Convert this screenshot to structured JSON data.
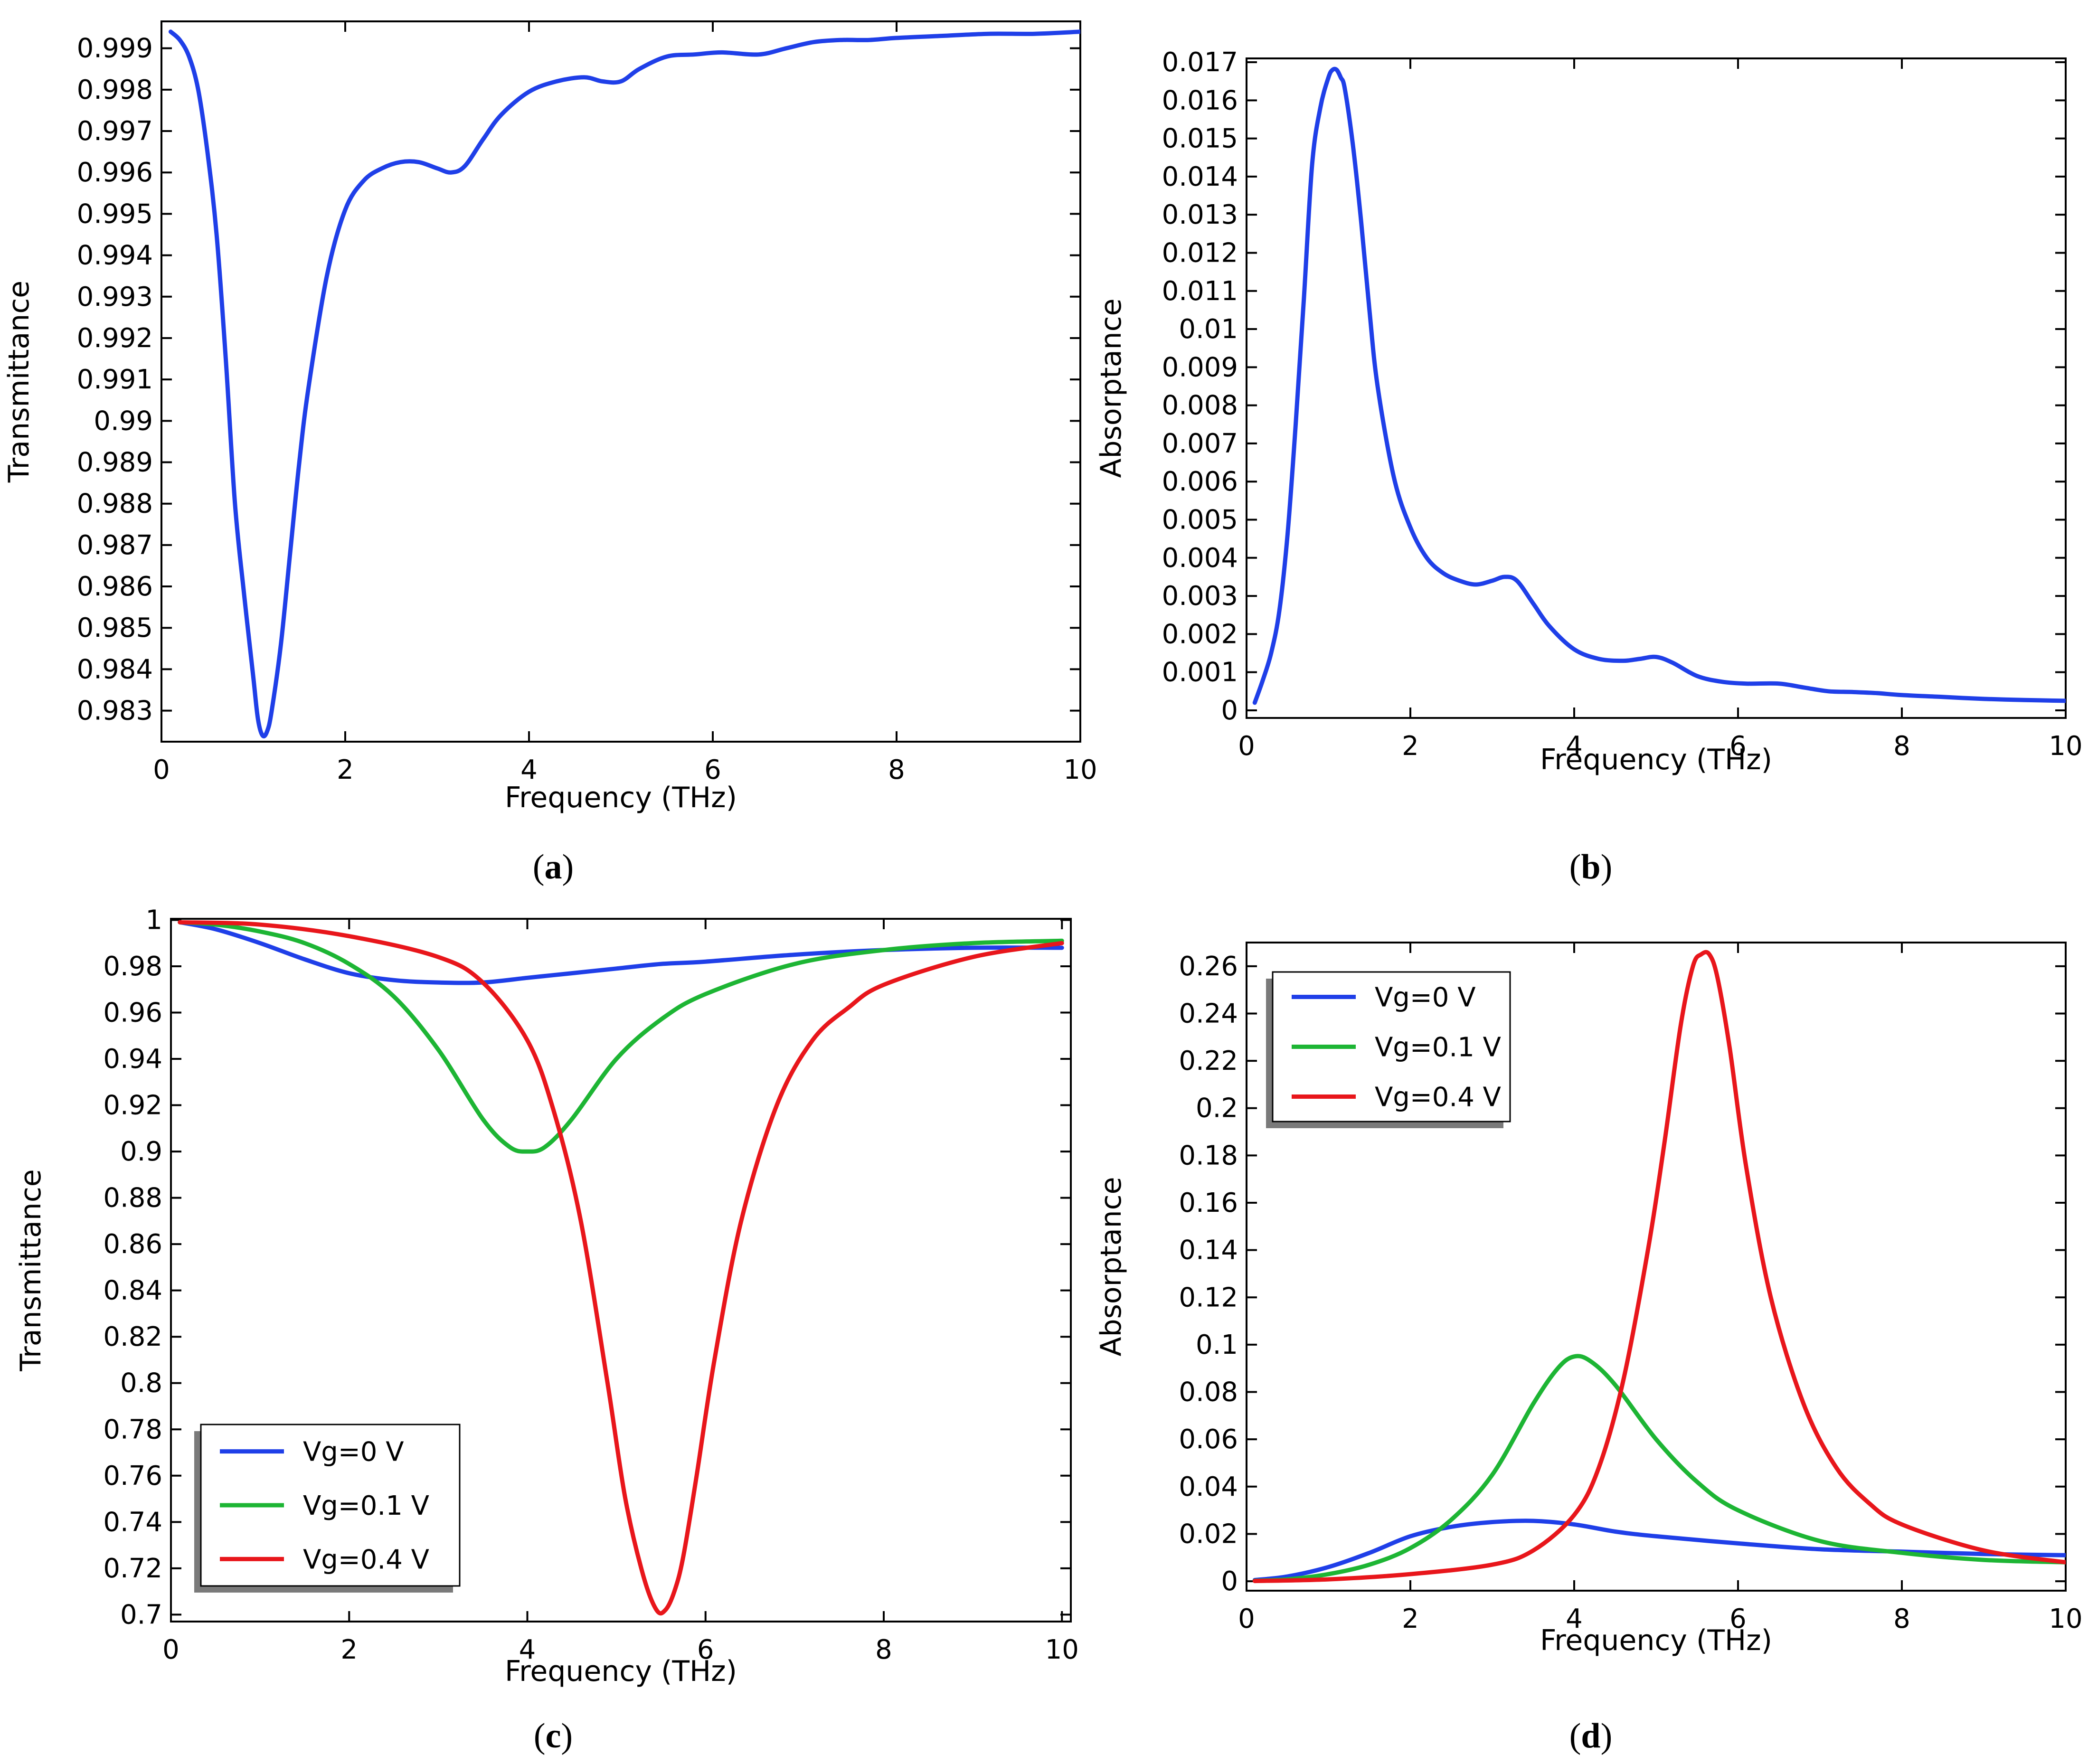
{
  "panel_labels": [
    "a",
    "b",
    "c",
    "d"
  ],
  "colors": {
    "blue": "#1f3fe8",
    "green": "#1db534",
    "red": "#e8161b",
    "axis": "#000000"
  },
  "chart_data": [
    {
      "id": "a",
      "type": "line",
      "xlabel": "Frequency (THz)",
      "ylabel": "Transmittance",
      "xlim": [
        0,
        10
      ],
      "ylim": [
        0.98225,
        0.99965
      ],
      "xticks": [
        0,
        2,
        4,
        6,
        8,
        10
      ],
      "xtick_labels": [
        "0",
        "2",
        "4",
        "6",
        "8",
        "10"
      ],
      "yticks": [
        0.983,
        0.984,
        0.985,
        0.986,
        0.987,
        0.988,
        0.989,
        0.99,
        0.991,
        0.992,
        0.993,
        0.994,
        0.995,
        0.996,
        0.997,
        0.998,
        0.999
      ],
      "ytick_labels": [
        "0.983",
        "0.984",
        "0.985",
        "0.986",
        "0.987",
        "0.988",
        "0.989",
        "0.99",
        "0.991",
        "0.992",
        "0.993",
        "0.994",
        "0.995",
        "0.996",
        "0.997",
        "0.998",
        "0.999"
      ],
      "series": [
        {
          "name": "Transmittance",
          "color": "blue",
          "x": [
            0.1,
            0.2,
            0.3,
            0.4,
            0.5,
            0.6,
            0.7,
            0.8,
            0.9,
            1.0,
            1.05,
            1.1,
            1.15,
            1.2,
            1.3,
            1.4,
            1.5,
            1.6,
            1.8,
            2.0,
            2.2,
            2.4,
            2.6,
            2.8,
            3.0,
            3.15,
            3.3,
            3.5,
            3.7,
            4.0,
            4.3,
            4.6,
            4.8,
            5.0,
            5.2,
            5.5,
            5.8,
            6.1,
            6.5,
            6.8,
            7.1,
            7.4,
            7.7,
            8.0,
            8.5,
            9.0,
            9.5,
            10.0
          ],
          "y": [
            0.9994,
            0.9992,
            0.9988,
            0.998,
            0.9965,
            0.9945,
            0.9915,
            0.988,
            0.9858,
            0.9838,
            0.9828,
            0.9824,
            0.9825,
            0.983,
            0.9846,
            0.9868,
            0.989,
            0.9908,
            0.9935,
            0.9951,
            0.9958,
            0.9961,
            0.99625,
            0.99625,
            0.9961,
            0.996,
            0.99615,
            0.9968,
            0.9974,
            0.99795,
            0.9982,
            0.9983,
            0.9982,
            0.9982,
            0.9985,
            0.9988,
            0.99885,
            0.9989,
            0.99885,
            0.999,
            0.99915,
            0.9992,
            0.9992,
            0.99925,
            0.9993,
            0.99935,
            0.99935,
            0.9994
          ]
        }
      ]
    },
    {
      "id": "b",
      "type": "line",
      "xlabel": "Frequency (THz)",
      "ylabel": "Absorptance",
      "xlim": [
        0,
        10
      ],
      "ylim": [
        -0.0002,
        0.0171
      ],
      "xticks": [
        0,
        2,
        4,
        6,
        8,
        10
      ],
      "xtick_labels": [
        "0",
        "2",
        "4",
        "6",
        "8",
        "10"
      ],
      "yticks": [
        0,
        0.001,
        0.002,
        0.003,
        0.004,
        0.005,
        0.006,
        0.007,
        0.008,
        0.009,
        0.01,
        0.011,
        0.012,
        0.013,
        0.014,
        0.015,
        0.016,
        0.017
      ],
      "ytick_labels": [
        "0",
        "0.001",
        "0.002",
        "0.003",
        "0.004",
        "0.005",
        "0.006",
        "0.007",
        "0.008",
        "0.009",
        "0.01",
        "0.011",
        "0.012",
        "0.013",
        "0.014",
        "0.015",
        "0.016",
        "0.017"
      ],
      "series": [
        {
          "name": "Absorptance",
          "color": "blue",
          "x": [
            0.1,
            0.2,
            0.3,
            0.4,
            0.5,
            0.6,
            0.7,
            0.8,
            0.9,
            1.0,
            1.05,
            1.1,
            1.15,
            1.2,
            1.3,
            1.4,
            1.5,
            1.6,
            1.8,
            2.0,
            2.2,
            2.4,
            2.6,
            2.8,
            3.0,
            3.15,
            3.3,
            3.5,
            3.7,
            4.0,
            4.3,
            4.6,
            4.8,
            5.0,
            5.2,
            5.5,
            5.8,
            6.1,
            6.5,
            6.8,
            7.1,
            7.4,
            7.7,
            8.0,
            8.5,
            9.0,
            9.5,
            10.0
          ],
          "y": [
            0.0002,
            0.0008,
            0.0015,
            0.0026,
            0.0046,
            0.0075,
            0.0108,
            0.0143,
            0.0158,
            0.0166,
            0.0168,
            0.0168,
            0.0166,
            0.0163,
            0.0148,
            0.0128,
            0.0105,
            0.0085,
            0.0061,
            0.0048,
            0.004,
            0.0036,
            0.0034,
            0.0033,
            0.0034,
            0.0035,
            0.0034,
            0.0028,
            0.0022,
            0.0016,
            0.00135,
            0.0013,
            0.00135,
            0.0014,
            0.00125,
            0.0009,
            0.00075,
            0.0007,
            0.0007,
            0.0006,
            0.0005,
            0.00048,
            0.00045,
            0.0004,
            0.00035,
            0.0003,
            0.00027,
            0.00025
          ]
        }
      ]
    },
    {
      "id": "c",
      "type": "line",
      "xlabel": "Frequency (THz)",
      "ylabel": "Transmittance",
      "xlim": [
        0,
        10.1
      ],
      "ylim": [
        0.697,
        1.0005
      ],
      "xticks": [
        0,
        2,
        4,
        6,
        8,
        10
      ],
      "xtick_labels": [
        "0",
        "2",
        "4",
        "6",
        "8",
        "10"
      ],
      "yticks": [
        0.7,
        0.72,
        0.74,
        0.76,
        0.78,
        0.8,
        0.82,
        0.84,
        0.86,
        0.88,
        0.9,
        0.92,
        0.94,
        0.96,
        0.98,
        1
      ],
      "ytick_labels": [
        "0.7",
        "0.72",
        "0.74",
        "0.76",
        "0.78",
        "0.8",
        "0.82",
        "0.84",
        "0.86",
        "0.88",
        "0.9",
        "0.92",
        "0.94",
        "0.96",
        "0.98",
        "1"
      ],
      "legend": {
        "position": "lower-left",
        "entries": [
          "Vg=0 V",
          "Vg=0.1 V",
          "Vg=0.4 V"
        ]
      },
      "series": [
        {
          "name": "Vg=0 V",
          "color": "blue",
          "x": [
            0.1,
            0.5,
            1.0,
            1.5,
            2.0,
            2.5,
            3.0,
            3.5,
            4.0,
            4.5,
            5.0,
            5.5,
            6.0,
            7.0,
            8.0,
            9.0,
            10.0
          ],
          "y": [
            0.999,
            0.996,
            0.99,
            0.983,
            0.977,
            0.974,
            0.973,
            0.973,
            0.975,
            0.977,
            0.979,
            0.981,
            0.982,
            0.985,
            0.987,
            0.988,
            0.988
          ]
        },
        {
          "name": "Vg=0.1 V",
          "color": "green",
          "x": [
            0.1,
            0.5,
            1.0,
            1.5,
            2.0,
            2.5,
            3.0,
            3.5,
            3.8,
            4.0,
            4.2,
            4.5,
            5.0,
            5.5,
            6.0,
            7.0,
            8.0,
            9.0,
            10.0
          ],
          "y": [
            0.999,
            0.998,
            0.995,
            0.99,
            0.981,
            0.967,
            0.944,
            0.914,
            0.902,
            0.9,
            0.902,
            0.914,
            0.94,
            0.957,
            0.968,
            0.981,
            0.987,
            0.99,
            0.991
          ]
        },
        {
          "name": "Vg=0.4 V",
          "color": "red",
          "x": [
            0.1,
            1.0,
            2.0,
            3.0,
            3.5,
            4.0,
            4.3,
            4.6,
            4.9,
            5.1,
            5.3,
            5.45,
            5.55,
            5.65,
            5.75,
            5.9,
            6.1,
            6.4,
            6.8,
            7.2,
            7.6,
            8.0,
            9.0,
            10.0
          ],
          "y": [
            0.999,
            0.998,
            0.993,
            0.984,
            0.973,
            0.948,
            0.917,
            0.87,
            0.8,
            0.75,
            0.717,
            0.702,
            0.702,
            0.71,
            0.725,
            0.76,
            0.81,
            0.87,
            0.92,
            0.948,
            0.962,
            0.972,
            0.984,
            0.99
          ]
        }
      ]
    },
    {
      "id": "d",
      "type": "line",
      "xlabel": "Frequency (THz)",
      "ylabel": "Absorptance",
      "xlim": [
        0,
        10
      ],
      "ylim": [
        -0.004,
        0.27
      ],
      "xticks": [
        0,
        2,
        4,
        6,
        8,
        10
      ],
      "xtick_labels": [
        "0",
        "2",
        "4",
        "6",
        "8",
        "10"
      ],
      "yticks": [
        0,
        0.02,
        0.04,
        0.06,
        0.08,
        0.1,
        0.12,
        0.14,
        0.16,
        0.18,
        0.2,
        0.22,
        0.24,
        0.26
      ],
      "ytick_labels": [
        "0",
        "0.02",
        "0.04",
        "0.06",
        "0.08",
        "0.1",
        "0.12",
        "0.14",
        "0.16",
        "0.18",
        "0.2",
        "0.22",
        "0.24",
        "0.26"
      ],
      "legend": {
        "position": "top-left",
        "entries": [
          "Vg=0 V",
          "Vg=0.1 V",
          "Vg=0.4 V"
        ]
      },
      "series": [
        {
          "name": "Vg=0 V",
          "color": "blue",
          "x": [
            0.1,
            0.5,
            1.0,
            1.5,
            2.0,
            2.5,
            3.0,
            3.5,
            4.0,
            4.5,
            5.0,
            6.0,
            7.0,
            8.0,
            9.0,
            10.0
          ],
          "y": [
            0.0005,
            0.002,
            0.006,
            0.012,
            0.019,
            0.023,
            0.025,
            0.0255,
            0.024,
            0.021,
            0.019,
            0.016,
            0.0135,
            0.0125,
            0.0115,
            0.011
          ]
        },
        {
          "name": "Vg=0.1 V",
          "color": "green",
          "x": [
            0.1,
            0.5,
            1.0,
            1.5,
            2.0,
            2.5,
            3.0,
            3.5,
            3.8,
            4.0,
            4.2,
            4.5,
            5.0,
            5.5,
            6.0,
            7.0,
            8.0,
            9.0,
            10.0
          ],
          "y": [
            0.0002,
            0.0008,
            0.003,
            0.007,
            0.014,
            0.026,
            0.045,
            0.075,
            0.09,
            0.095,
            0.093,
            0.083,
            0.06,
            0.042,
            0.03,
            0.017,
            0.012,
            0.009,
            0.008
          ]
        },
        {
          "name": "Vg=0.4 V",
          "color": "red",
          "x": [
            0.1,
            1.0,
            2.0,
            3.0,
            3.5,
            4.0,
            4.3,
            4.6,
            4.9,
            5.1,
            5.3,
            5.45,
            5.55,
            5.65,
            5.75,
            5.9,
            6.1,
            6.4,
            6.8,
            7.2,
            7.6,
            8.0,
            9.0,
            10.0
          ],
          "y": [
            0.0001,
            0.0008,
            0.003,
            0.007,
            0.013,
            0.028,
            0.048,
            0.085,
            0.14,
            0.185,
            0.235,
            0.26,
            0.265,
            0.265,
            0.255,
            0.225,
            0.175,
            0.12,
            0.075,
            0.048,
            0.033,
            0.024,
            0.013,
            0.008
          ]
        }
      ]
    }
  ]
}
